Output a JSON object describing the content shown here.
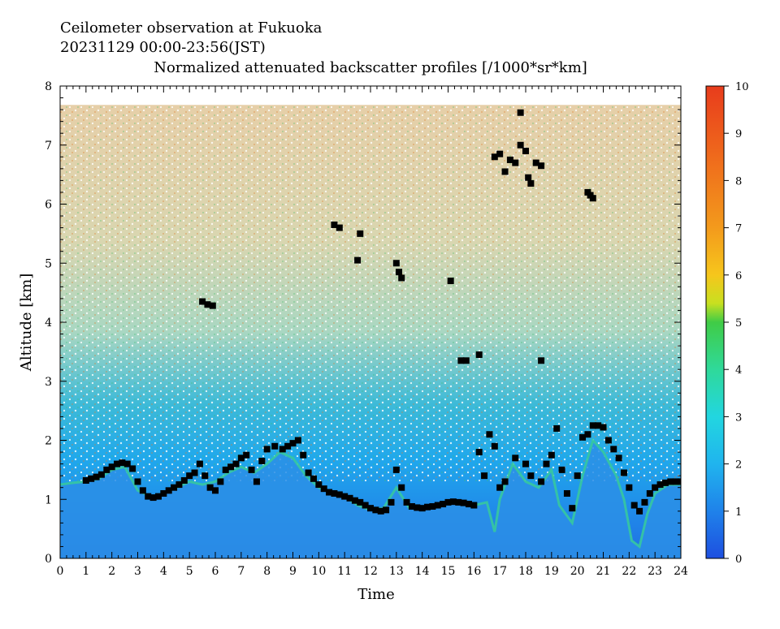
{
  "header": {
    "line1": "Ceilometer observation at Fukuoka",
    "line2": "20231129  00:00-23:56(JST)",
    "line3": "Normalized attenuated backscatter profiles [/1000*sr*km]"
  },
  "chart_data": {
    "type": "heatmap",
    "xlabel": "Time",
    "ylabel": "Altitude [km]",
    "xlim": [
      0,
      24
    ],
    "ylim": [
      0,
      8
    ],
    "x_ticks": [
      0,
      1,
      2,
      3,
      4,
      5,
      6,
      7,
      8,
      9,
      10,
      11,
      12,
      13,
      14,
      15,
      16,
      17,
      18,
      19,
      20,
      21,
      22,
      23,
      24
    ],
    "y_ticks": [
      0,
      1,
      2,
      3,
      4,
      5,
      6,
      7,
      8
    ],
    "data_top_altitude_km": 7.68,
    "colorbar": {
      "min": 0,
      "max": 10,
      "ticks": [
        0,
        1,
        2,
        3,
        4,
        5,
        6,
        7,
        8,
        9,
        10
      ],
      "colors": [
        "#1e4fe0",
        "#1f82ea",
        "#20b4ee",
        "#22d6e0",
        "#2fd99a",
        "#40cc46",
        "#d6e01e",
        "#f6c61c",
        "#f39a1c",
        "#ef6a1c",
        "#e83c1c"
      ]
    },
    "boundary_layer_top_km": [
      [
        0,
        1.25
      ],
      [
        0.5,
        1.28
      ],
      [
        1,
        1.3
      ],
      [
        1.5,
        1.35
      ],
      [
        2,
        1.5
      ],
      [
        2.5,
        1.55
      ],
      [
        3,
        1.15
      ],
      [
        3.5,
        1.05
      ],
      [
        4,
        1.1
      ],
      [
        4.5,
        1.2
      ],
      [
        5,
        1.3
      ],
      [
        5.5,
        1.25
      ],
      [
        6,
        1.3
      ],
      [
        6.5,
        1.45
      ],
      [
        7,
        1.55
      ],
      [
        7.5,
        1.45
      ],
      [
        8,
        1.6
      ],
      [
        8.5,
        1.8
      ],
      [
        9,
        1.7
      ],
      [
        9.5,
        1.4
      ],
      [
        10,
        1.2
      ],
      [
        10.5,
        1.1
      ],
      [
        11,
        1.05
      ],
      [
        11.5,
        0.9
      ],
      [
        12,
        0.82
      ],
      [
        12.5,
        0.85
      ],
      [
        13,
        1.2
      ],
      [
        13.5,
        0.85
      ],
      [
        14,
        0.85
      ],
      [
        14.5,
        0.9
      ],
      [
        15,
        0.95
      ],
      [
        15.5,
        0.95
      ],
      [
        16,
        0.9
      ],
      [
        16.5,
        0.95
      ],
      [
        16.8,
        0.45
      ],
      [
        17,
        1.0
      ],
      [
        17.5,
        1.6
      ],
      [
        18,
        1.3
      ],
      [
        18.5,
        1.2
      ],
      [
        19,
        1.5
      ],
      [
        19.3,
        0.9
      ],
      [
        19.8,
        0.6
      ],
      [
        20.2,
        1.4
      ],
      [
        20.6,
        2.0
      ],
      [
        21,
        1.8
      ],
      [
        21.5,
        1.4
      ],
      [
        21.8,
        1.0
      ],
      [
        22.1,
        0.3
      ],
      [
        22.4,
        0.2
      ],
      [
        22.7,
        0.75
      ],
      [
        23,
        1.1
      ],
      [
        23.5,
        1.25
      ],
      [
        24,
        1.25
      ]
    ],
    "cloud_base_points": [
      [
        1.0,
        1.32
      ],
      [
        1.2,
        1.35
      ],
      [
        1.4,
        1.38
      ],
      [
        1.6,
        1.42
      ],
      [
        1.8,
        1.5
      ],
      [
        2.0,
        1.55
      ],
      [
        2.2,
        1.6
      ],
      [
        2.4,
        1.62
      ],
      [
        2.6,
        1.6
      ],
      [
        2.8,
        1.52
      ],
      [
        3.0,
        1.3
      ],
      [
        3.2,
        1.15
      ],
      [
        3.4,
        1.05
      ],
      [
        3.6,
        1.03
      ],
      [
        3.8,
        1.05
      ],
      [
        4.0,
        1.1
      ],
      [
        4.2,
        1.15
      ],
      [
        4.4,
        1.2
      ],
      [
        4.6,
        1.25
      ],
      [
        4.8,
        1.32
      ],
      [
        5.0,
        1.4
      ],
      [
        5.2,
        1.45
      ],
      [
        5.4,
        1.6
      ],
      [
        5.6,
        1.4
      ],
      [
        5.8,
        1.2
      ],
      [
        6.0,
        1.15
      ],
      [
        6.2,
        1.3
      ],
      [
        6.4,
        1.5
      ],
      [
        6.6,
        1.55
      ],
      [
        6.8,
        1.6
      ],
      [
        7.0,
        1.7
      ],
      [
        7.2,
        1.75
      ],
      [
        7.4,
        1.5
      ],
      [
        7.6,
        1.3
      ],
      [
        7.8,
        1.65
      ],
      [
        8.0,
        1.85
      ],
      [
        8.3,
        1.9
      ],
      [
        8.6,
        1.85
      ],
      [
        8.8,
        1.9
      ],
      [
        9.0,
        1.95
      ],
      [
        9.2,
        2.0
      ],
      [
        9.4,
        1.75
      ],
      [
        9.6,
        1.45
      ],
      [
        9.8,
        1.35
      ],
      [
        10.0,
        1.25
      ],
      [
        10.2,
        1.18
      ],
      [
        10.4,
        1.12
      ],
      [
        10.6,
        1.1
      ],
      [
        10.8,
        1.08
      ],
      [
        11.0,
        1.05
      ],
      [
        11.2,
        1.02
      ],
      [
        11.4,
        0.98
      ],
      [
        11.6,
        0.95
      ],
      [
        11.8,
        0.9
      ],
      [
        12.0,
        0.85
      ],
      [
        12.2,
        0.82
      ],
      [
        12.4,
        0.8
      ],
      [
        12.6,
        0.82
      ],
      [
        12.8,
        0.95
      ],
      [
        13.0,
        1.5
      ],
      [
        13.2,
        1.2
      ],
      [
        13.4,
        0.95
      ],
      [
        13.6,
        0.88
      ],
      [
        13.8,
        0.86
      ],
      [
        14.0,
        0.85
      ],
      [
        14.2,
        0.87
      ],
      [
        14.4,
        0.88
      ],
      [
        14.6,
        0.9
      ],
      [
        14.8,
        0.92
      ],
      [
        15.0,
        0.95
      ],
      [
        15.2,
        0.96
      ],
      [
        15.4,
        0.95
      ],
      [
        15.6,
        0.94
      ],
      [
        15.8,
        0.92
      ],
      [
        16.0,
        0.9
      ],
      [
        16.2,
        1.8
      ],
      [
        16.4,
        1.4
      ],
      [
        16.6,
        2.1
      ],
      [
        16.8,
        1.9
      ],
      [
        17.0,
        1.2
      ],
      [
        17.2,
        1.3
      ],
      [
        17.6,
        1.7
      ],
      [
        18.0,
        1.6
      ],
      [
        18.2,
        1.4
      ],
      [
        18.6,
        1.3
      ],
      [
        18.8,
        1.6
      ],
      [
        19.0,
        1.75
      ],
      [
        19.2,
        2.2
      ],
      [
        19.4,
        1.5
      ],
      [
        19.6,
        1.1
      ],
      [
        19.8,
        0.85
      ],
      [
        20.0,
        1.4
      ],
      [
        20.2,
        2.05
      ],
      [
        20.4,
        2.1
      ],
      [
        20.6,
        2.25
      ],
      [
        20.8,
        2.25
      ],
      [
        21.0,
        2.22
      ],
      [
        21.2,
        2.0
      ],
      [
        21.4,
        1.85
      ],
      [
        21.6,
        1.7
      ],
      [
        21.8,
        1.45
      ],
      [
        22.0,
        1.2
      ],
      [
        22.2,
        0.9
      ],
      [
        22.4,
        0.8
      ],
      [
        22.6,
        0.95
      ],
      [
        22.8,
        1.1
      ],
      [
        23.0,
        1.2
      ],
      [
        23.2,
        1.25
      ],
      [
        23.4,
        1.28
      ],
      [
        23.6,
        1.3
      ],
      [
        23.8,
        1.3
      ],
      [
        24.0,
        1.3
      ],
      [
        5.5,
        4.35
      ],
      [
        5.7,
        4.3
      ],
      [
        5.9,
        4.28
      ],
      [
        10.6,
        5.65
      ],
      [
        10.8,
        5.6
      ],
      [
        11.6,
        5.5
      ],
      [
        11.5,
        5.05
      ],
      [
        13.0,
        5.0
      ],
      [
        13.1,
        4.85
      ],
      [
        13.2,
        4.75
      ],
      [
        15.1,
        4.7
      ],
      [
        15.5,
        3.35
      ],
      [
        15.7,
        3.35
      ],
      [
        16.2,
        3.45
      ],
      [
        18.6,
        3.35
      ],
      [
        16.8,
        6.8
      ],
      [
        17.0,
        6.85
      ],
      [
        17.2,
        6.55
      ],
      [
        17.4,
        6.75
      ],
      [
        17.6,
        6.7
      ],
      [
        17.8,
        7.0
      ],
      [
        18.0,
        6.9
      ],
      [
        18.1,
        6.45
      ],
      [
        18.2,
        6.35
      ],
      [
        18.4,
        6.7
      ],
      [
        18.6,
        6.65
      ],
      [
        17.8,
        7.55
      ],
      [
        20.4,
        6.2
      ],
      [
        20.5,
        6.15
      ],
      [
        20.6,
        6.1
      ]
    ]
  }
}
